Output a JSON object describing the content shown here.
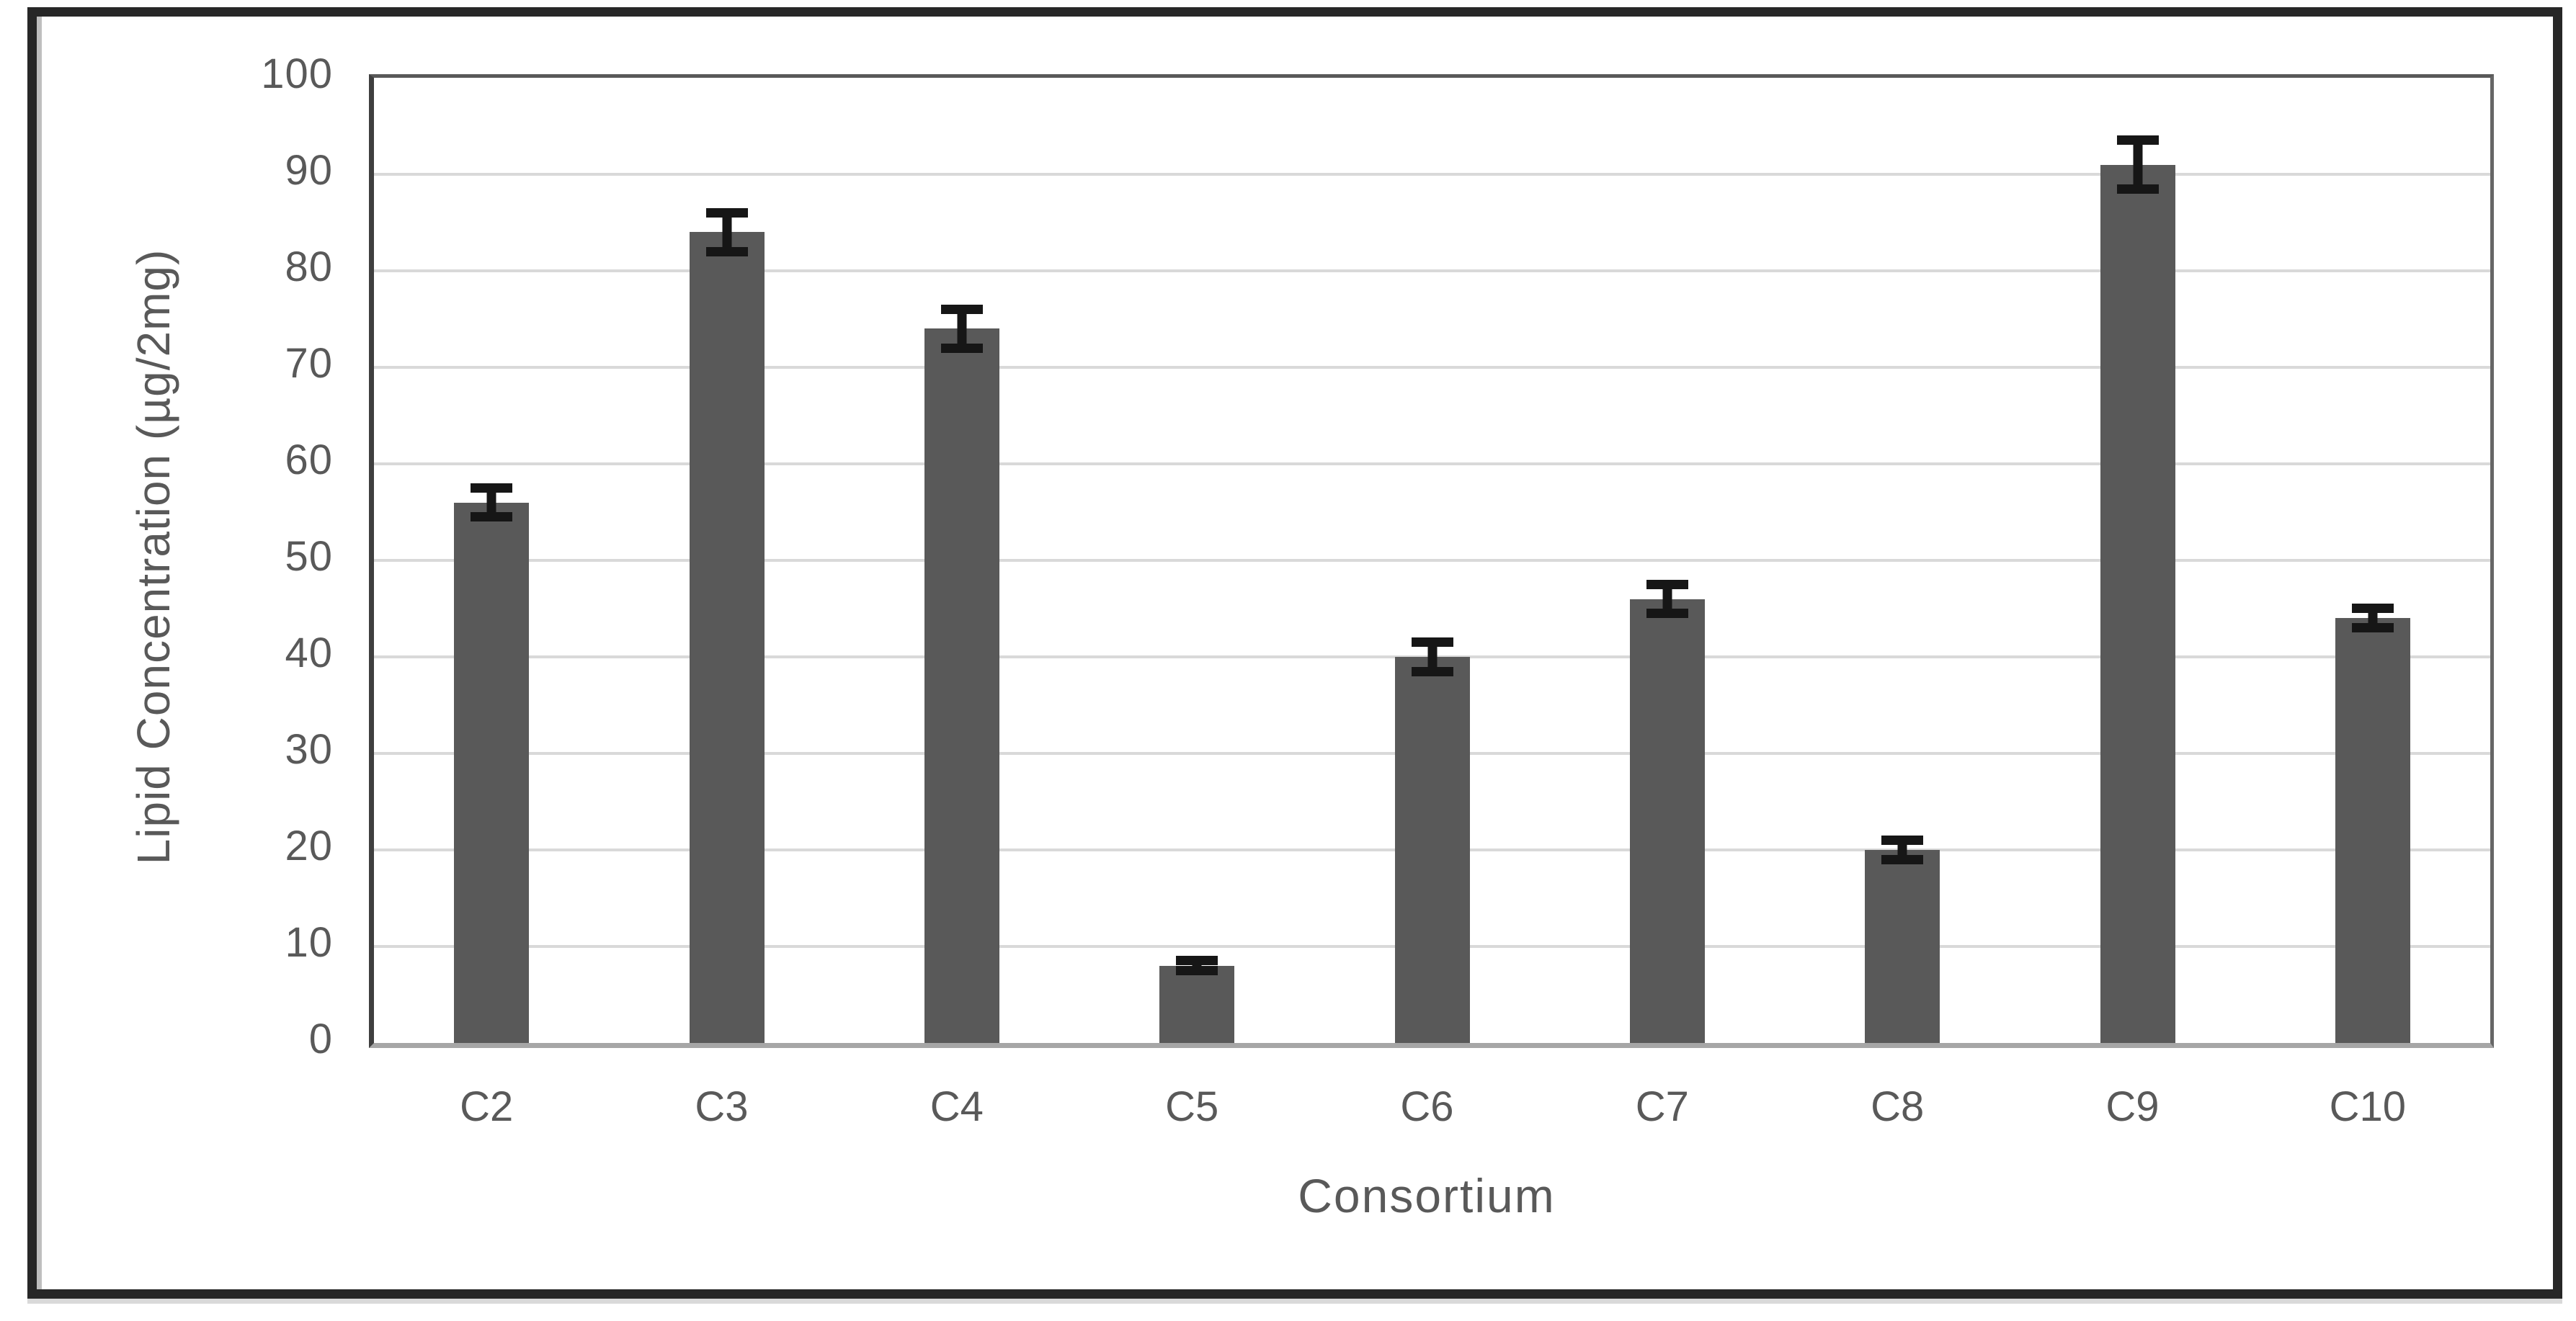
{
  "chart_data": {
    "type": "bar",
    "title": "",
    "xlabel": "Consortium",
    "ylabel": "Lipid Concentration (µg/2mg)",
    "categories": [
      "C2",
      "C3",
      "C4",
      "C5",
      "C6",
      "C7",
      "C8",
      "C9",
      "C10"
    ],
    "values": [
      56,
      84,
      74,
      8,
      40,
      46,
      20,
      91,
      44
    ],
    "error_bars": [
      2,
      2.5,
      2.5,
      1,
      2,
      2,
      1.5,
      3,
      1.5
    ],
    "ylim": [
      0,
      100
    ],
    "yticks": [
      0,
      10,
      20,
      30,
      40,
      50,
      60,
      70,
      80,
      90,
      100
    ],
    "grid": true,
    "legend": "none",
    "colors": {
      "bar": "#595959",
      "error": "#161616",
      "grid": "#d9d9d9",
      "tick_text": "#595959",
      "frame": "#595959",
      "outer_border": "#272727"
    }
  }
}
